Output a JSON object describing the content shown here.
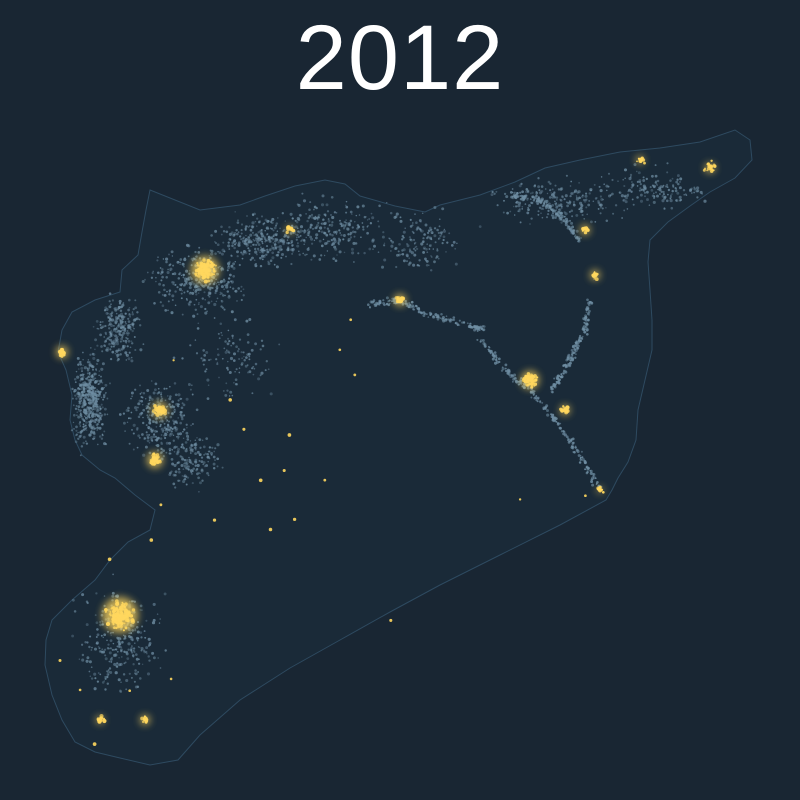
{
  "title": "2012",
  "colors": {
    "background": "#192633",
    "border": "#2e4a60",
    "dim_light": "#6f8ea3",
    "bright_light": "#ffd75e"
  }
}
